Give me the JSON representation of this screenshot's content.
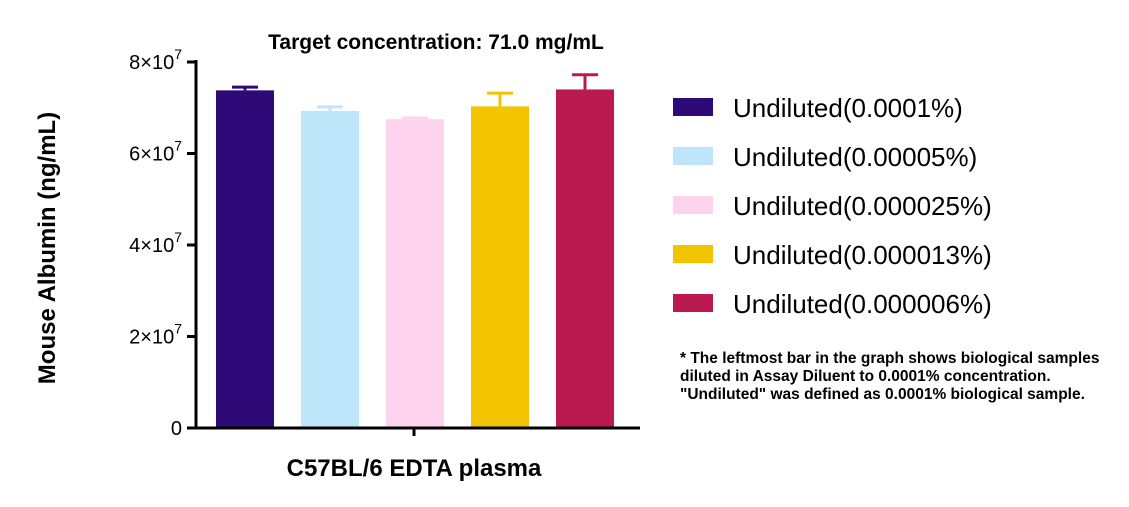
{
  "chart_data": {
    "type": "bar",
    "title": "Target concentration: 71.0 mg/mL",
    "xlabel": "C57BL/6 EDTA plasma",
    "ylabel": "Mouse Albumin (ng/mL)",
    "ylim": [
      0,
      80000000
    ],
    "y_ticks": [
      {
        "value": 0,
        "label": "0",
        "exp": ""
      },
      {
        "value": 20000000,
        "label": "2×10",
        "exp": "7"
      },
      {
        "value": 40000000,
        "label": "4×10",
        "exp": "7"
      },
      {
        "value": 60000000,
        "label": "6×10",
        "exp": "7"
      },
      {
        "value": 80000000,
        "label": "8×10",
        "exp": "7"
      }
    ],
    "categories": [
      "Undiluted(0.0001%)",
      "Undiluted(0.00005%)",
      "Undiluted(0.000025%)",
      "Undiluted(0.000013%)",
      "Undiluted(0.000006%)"
    ],
    "values": [
      73800000,
      69300000,
      67500000,
      70300000,
      74000000
    ],
    "errors": [
      700000,
      900000,
      300000,
      2900000,
      3200000
    ],
    "colors": [
      "#2e0a78",
      "#bde6fa",
      "#fdd3ee",
      "#f3c400",
      "#bb1a50"
    ],
    "legend_position": "right",
    "grid": false
  },
  "footnote": "* The leftmost bar in the graph shows biological samples diluted in Assay Diluent to 0.0001% concentration. \"Undiluted\" was defined as 0.0001% biological sample."
}
